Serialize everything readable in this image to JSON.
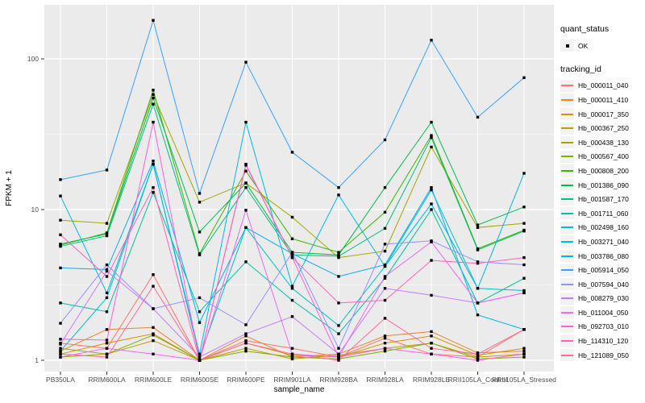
{
  "figure": {
    "background": "#FFFFFF",
    "panel_bg": "#EBEBEB",
    "grid_color": "#FFFFFF",
    "tick_color": "#333333",
    "tick_label_color": "#4D4D4D",
    "point_color": "#000000"
  },
  "axes": {
    "x": {
      "title": "sample_name",
      "tick_labels": [
        "PB350LA",
        "RRIM600LA",
        "RRIM600LE",
        "RRIM600SE",
        "RRIM600PE",
        "RRIM901LA",
        "RRIM928BA",
        "RRIM928LA",
        "RRIM928LE",
        "RRII105LA_Control",
        "RRII105LA_Stressed"
      ]
    },
    "y": {
      "title": "FPKM + 1",
      "scale": "log10",
      "tick_labels": [
        "1",
        "10",
        "100"
      ],
      "tick_values": [
        1,
        10,
        100
      ]
    }
  },
  "legend": {
    "quant_status": {
      "title": "quant_status",
      "items": [
        {
          "label": "OK",
          "marker": "black-square-point"
        }
      ]
    },
    "tracking_id_title": "tracking_id"
  },
  "chart_data": {
    "type": "line",
    "title": "",
    "xlabel": "sample_name",
    "ylabel": "FPKM + 1",
    "y_scale": "log10",
    "ylim": [
      0.85,
      230
    ],
    "y_major_gridlines": [
      1,
      10,
      100
    ],
    "y_minor_gridlines": [
      3.162,
      31.62
    ],
    "grid": true,
    "legend_position": "right",
    "point_marker": "filled-black-square",
    "categories": [
      "PB350LA",
      "RRIM600LA",
      "RRIM600LE",
      "RRIM600SE",
      "RRIM600PE",
      "RRIM901LA",
      "RRIM928BA",
      "RRIM928LA",
      "RRIM928LE",
      "RRII105LA_Control",
      "RRII105LA_Stressed"
    ],
    "series": [
      {
        "name": "Hb_000011_040",
        "color": "#F8766D",
        "values": [
          1.3,
          1.2,
          3.7,
          1.0,
          1.35,
          1.2,
          1.05,
          1.4,
          1.1,
          1.05,
          1.6
        ]
      },
      {
        "name": "Hb_000011_410",
        "color": "#EA8331",
        "values": [
          1.15,
          1.6,
          1.65,
          1.0,
          1.45,
          1.05,
          1.1,
          1.45,
          1.55,
          1.12,
          1.15
        ]
      },
      {
        "name": "Hb_000017_350",
        "color": "#D89000",
        "values": [
          1.1,
          1.3,
          1.5,
          1.0,
          1.3,
          1.08,
          1.05,
          1.3,
          1.45,
          1.08,
          1.2
        ]
      },
      {
        "name": "Hb_000367_250",
        "color": "#C09B00",
        "values": [
          1.2,
          1.1,
          1.35,
          1.0,
          1.2,
          1.02,
          1.08,
          1.2,
          1.3,
          1.05,
          1.1
        ]
      },
      {
        "name": "Hb_000438_130",
        "color": "#A3A500",
        "values": [
          8.5,
          8.1,
          58,
          11.2,
          15,
          8.9,
          4.8,
          5.3,
          26,
          7.6,
          8.1
        ]
      },
      {
        "name": "Hb_000567_400",
        "color": "#7CAE00",
        "values": [
          1.05,
          1.1,
          1.47,
          1.0,
          1.15,
          1.05,
          1.02,
          1.15,
          1.3,
          1.02,
          1.05
        ]
      },
      {
        "name": "Hb_000808_200",
        "color": "#39B600",
        "values": [
          5.8,
          7.0,
          62,
          5.1,
          18,
          6.4,
          5.2,
          9.6,
          31,
          5.5,
          7.3
        ]
      },
      {
        "name": "Hb_001386_090",
        "color": "#00BB4E",
        "values": [
          5.9,
          6.9,
          55,
          7.1,
          15,
          5.2,
          5.0,
          14,
          38,
          7.9,
          10.4
        ]
      },
      {
        "name": "Hb_001587_170",
        "color": "#00BF7D",
        "values": [
          5.7,
          6.7,
          50,
          5.0,
          14,
          5.0,
          4.9,
          7.5,
          30,
          5.4,
          7.2
        ]
      },
      {
        "name": "Hb_001711_060",
        "color": "#00C1A3",
        "values": [
          2.4,
          2.1,
          13,
          2.1,
          4.5,
          2.5,
          1.5,
          3.5,
          10,
          2.4,
          3.5
        ]
      },
      {
        "name": "Hb_002498_160",
        "color": "#00BFC4",
        "values": [
          1.15,
          2.6,
          20,
          1.05,
          7.6,
          3.0,
          1.7,
          4.2,
          13.5,
          3.0,
          2.9
        ]
      },
      {
        "name": "Hb_003271_040",
        "color": "#00BAE0",
        "values": [
          12.3,
          2.8,
          20,
          1.1,
          38,
          3.1,
          12.5,
          4.2,
          10.9,
          3.0,
          17.4
        ]
      },
      {
        "name": "Hb_003786_080",
        "color": "#00B0F6",
        "values": [
          4.1,
          4.0,
          21,
          1.78,
          7.6,
          5.1,
          3.6,
          4.3,
          14,
          2.0,
          1.6
        ]
      },
      {
        "name": "Hb_005914_050",
        "color": "#35A2FF",
        "values": [
          15.8,
          18.3,
          180,
          12.8,
          95,
          24,
          14,
          29,
          133,
          41,
          75
        ]
      },
      {
        "name": "Hb_007594_040",
        "color": "#9590FF",
        "values": [
          1.76,
          4.3,
          2.2,
          2.6,
          1.72,
          5.2,
          1.2,
          5.9,
          6.2,
          4.5,
          4.3
        ]
      },
      {
        "name": "Hb_008279_030",
        "color": "#C77CFF",
        "values": [
          1.28,
          3.9,
          2.2,
          1.05,
          1.5,
          1.95,
          1.1,
          3.0,
          2.7,
          2.4,
          2.8
        ]
      },
      {
        "name": "Hb_011004_050",
        "color": "#E76BF3",
        "values": [
          1.05,
          1.2,
          1.1,
          1.0,
          9.9,
          1.1,
          1.05,
          3.6,
          6.1,
          2.4,
          2.8
        ]
      },
      {
        "name": "Hb_092703_010",
        "color": "#FA62DB",
        "values": [
          1.38,
          1.36,
          38,
          1.0,
          19.7,
          4.8,
          1.05,
          1.2,
          1.1,
          1.0,
          1.1
        ]
      },
      {
        "name": "Hb_114310_120",
        "color": "#FF62BC",
        "values": [
          6.8,
          3.6,
          14,
          1.0,
          20,
          4.8,
          2.4,
          2.5,
          4.6,
          4.4,
          4.8
        ]
      },
      {
        "name": "Hb_121089_050",
        "color": "#FF6A98",
        "values": [
          1.1,
          1.05,
          3.1,
          1.0,
          1.3,
          1.1,
          1.0,
          1.9,
          1.2,
          1.1,
          1.6
        ]
      }
    ]
  }
}
